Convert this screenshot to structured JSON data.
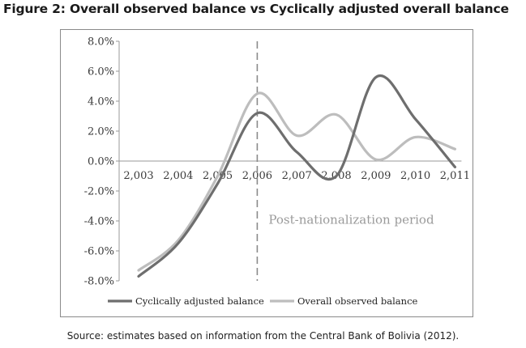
{
  "figure": {
    "title": "Figure 2: Overall observed balance vs Cyclically adjusted overall balance",
    "source": "Source: estimates based on information from the Central Bank of Bolivia (2012)."
  },
  "chart_data": {
    "type": "line",
    "title": "Figure 2: Overall observed balance vs Cyclically adjusted overall balance",
    "xlabel": "",
    "ylabel": "",
    "x": [
      2003,
      2004,
      2005,
      2006,
      2007,
      2008,
      2009,
      2010,
      2011
    ],
    "x_tick_labels": [
      "2,003",
      "2,004",
      "2,005",
      "2,006",
      "2,007",
      "2,008",
      "2,009",
      "2,010",
      "2,011"
    ],
    "ylim": [
      -8,
      8
    ],
    "y_ticks": [
      8,
      6,
      4,
      2,
      0,
      -2,
      -4,
      -6,
      -8
    ],
    "y_tick_labels": [
      "8.0%",
      "6.0%",
      "4.0%",
      "2.0%",
      "0.0%",
      "-2.0%",
      "-4.0%",
      "-6.0%",
      "-8.0%"
    ],
    "series": [
      {
        "name": "Cyclically adjusted balance",
        "color": "#6e6e6e",
        "values": [
          -7.7,
          -5.5,
          -1.5,
          3.2,
          0.6,
          -1.0,
          5.6,
          2.8,
          -0.4
        ]
      },
      {
        "name": "Overall observed balance",
        "color": "#bdbdbd",
        "values": [
          -7.3,
          -5.3,
          -1.0,
          4.5,
          1.7,
          3.1,
          0.1,
          1.6,
          0.8
        ]
      }
    ],
    "vline": {
      "x": 2006,
      "style": "dashed"
    },
    "annotation": "Post-nationalization period",
    "legend_position": "bottom",
    "grid": false
  }
}
